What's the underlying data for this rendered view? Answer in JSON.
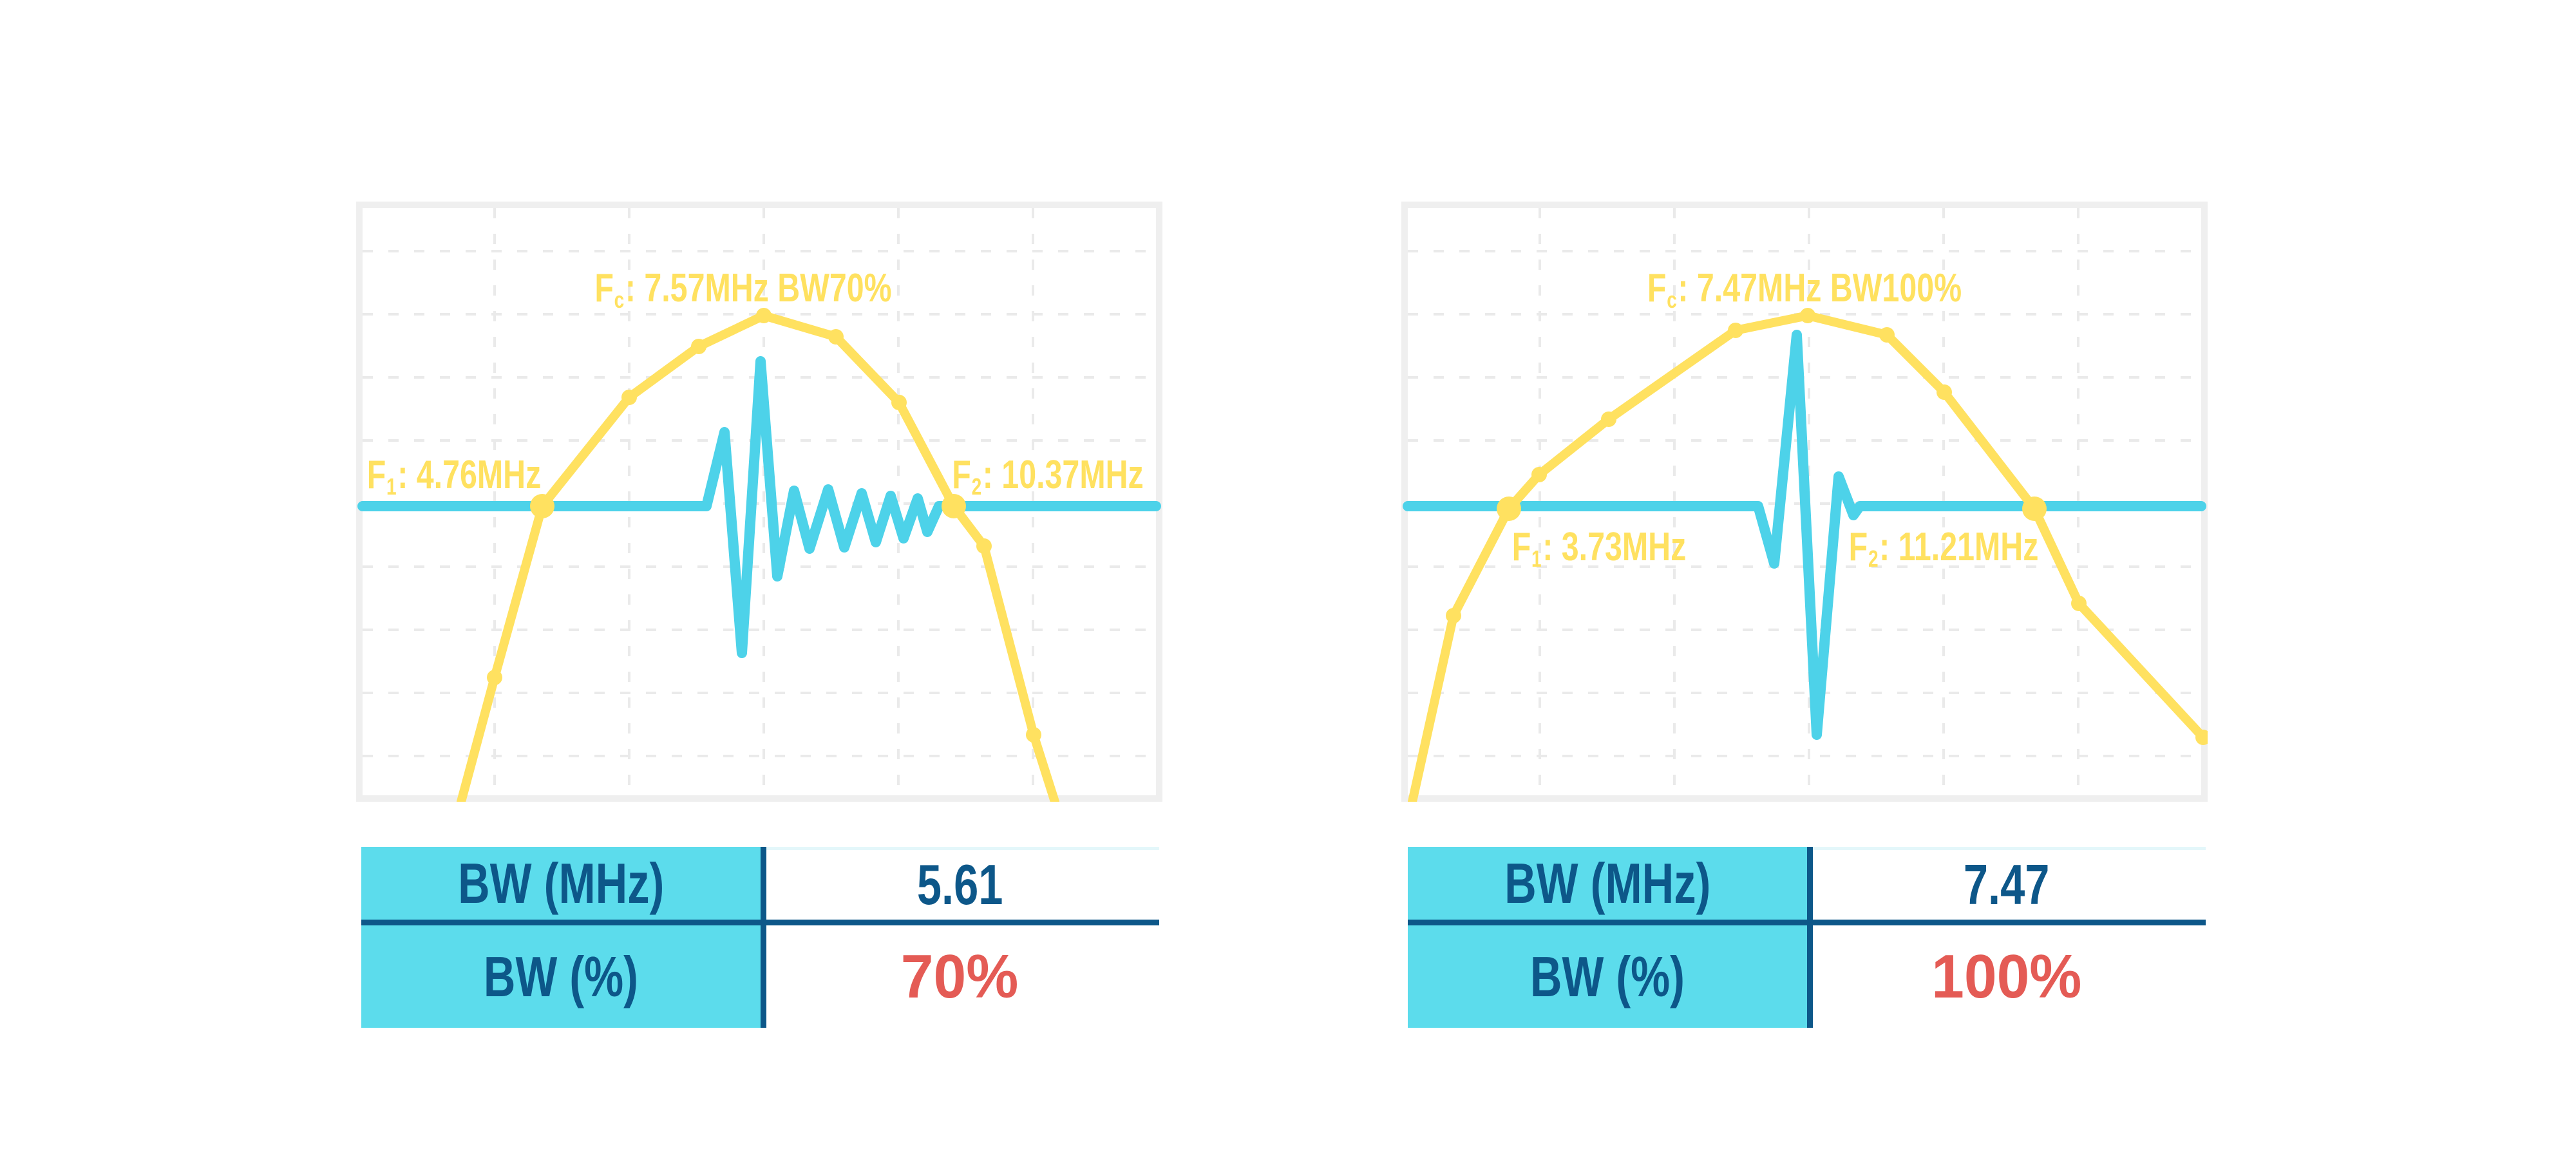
{
  "colors": {
    "yellow": "#FFE160",
    "cyan_wave": "#4DD2E9",
    "cyan_fill": "#5CDCEC",
    "dark_blue": "#0D5789",
    "red": "#E45B55",
    "grid": "#EAEAEA",
    "panel_border": "#EFEFEF",
    "value_cell_top_line": "#E4F7FA"
  },
  "chart_data": [
    {
      "type": "line",
      "title": "Fc: 7.57MHz BW70%",
      "fc_mhz": 7.57,
      "f1_mhz": 4.76,
      "f2_mhz": 10.37,
      "bw_mhz": 5.61,
      "bw_pct": 70,
      "legend": [
        "frequency spectrum (yellow, dot markers)",
        "pulse-echo waveform (cyan)"
      ],
      "grid": "dashed light-gray, no axis labels",
      "spectrum_mhz": [
        4.11,
        4.76,
        5.95,
        6.89,
        7.78,
        8.76,
        9.62,
        10.37,
        10.78,
        11.46
      ],
      "spectrum_amp": [
        0.26,
        0.61,
        0.83,
        0.94,
        1.0,
        0.96,
        0.82,
        0.61,
        0.53,
        0.14
      ],
      "pulse_description": "short broadband pulse with decaying ringing tail on baseline"
    },
    {
      "type": "line",
      "title": "Fc: 7.47MHz BW100%",
      "fc_mhz": 7.47,
      "f1_mhz": 3.73,
      "f2_mhz": 11.21,
      "bw_mhz": 7.47,
      "bw_pct": 100,
      "legend": [
        "frequency spectrum (yellow, dot markers)",
        "pulse-echo waveform (cyan)"
      ],
      "grid": "dashed light-gray, no axis labels",
      "spectrum_mhz": [
        2.94,
        3.73,
        4.16,
        5.15,
        6.96,
        7.98,
        9.09,
        9.93,
        11.21,
        11.84,
        13.58
      ],
      "spectrum_amp": [
        0.38,
        0.6,
        0.67,
        0.79,
        0.97,
        1.0,
        0.96,
        0.84,
        0.6,
        0.41,
        0.13
      ],
      "pulse_description": "very short single-spike pulse, no ringing"
    }
  ],
  "charts": [
    {
      "annotations": [
        {
          "prefix": "F",
          "sub": "c",
          "rest": ": 7.57MHz BW70%"
        },
        {
          "prefix": "F",
          "sub": "1",
          "rest": ": 4.76MHz"
        },
        {
          "prefix": "F",
          "sub": "2",
          "rest": ": 10.37MHz"
        }
      ],
      "grid": {
        "vx": [
          205,
          414,
          623,
          832,
          1041
        ],
        "hy": [
          67,
          165,
          263,
          361,
          459,
          557,
          655,
          753,
          851
        ]
      },
      "spectrum": [
        [
          153,
          922,
          0
        ],
        [
          205,
          729,
          1
        ],
        [
          279,
          463,
          2
        ],
        [
          414,
          294,
          1
        ],
        [
          522,
          215,
          1
        ],
        [
          623,
          167,
          1
        ],
        [
          735,
          200,
          1
        ],
        [
          833,
          302,
          1
        ],
        [
          918,
          463,
          2
        ],
        [
          965,
          525,
          1
        ],
        [
          1042,
          818,
          1
        ],
        [
          1075,
          922,
          0
        ]
      ],
      "pulse": [
        [
          0,
          463
        ],
        [
          534,
          463
        ],
        [
          562,
          348
        ],
        [
          589,
          691
        ],
        [
          618,
          238
        ],
        [
          644,
          572
        ],
        [
          670,
          439
        ],
        [
          694,
          529
        ],
        [
          723,
          437
        ],
        [
          748,
          527
        ],
        [
          775,
          443
        ],
        [
          797,
          519
        ],
        [
          820,
          447
        ],
        [
          840,
          513
        ],
        [
          862,
          451
        ],
        [
          877,
          503
        ],
        [
          895,
          463
        ],
        [
          1232,
          463
        ]
      ],
      "table": {
        "row1_label": "BW (MHz)",
        "row1_value": "5.61",
        "row2_label": "BW (%)",
        "row2_value": "70%"
      }
    },
    {
      "annotations": [
        {
          "prefix": "F",
          "sub": "c",
          "rest": ": 7.47MHz BW100%"
        },
        {
          "prefix": "F",
          "sub": "1",
          "rest": ": 3.73MHz"
        },
        {
          "prefix": "F",
          "sub": "2",
          "rest": ": 11.21MHz"
        }
      ],
      "grid": {
        "vx": [
          205,
          414,
          623,
          832,
          1041
        ],
        "hy": [
          67,
          165,
          263,
          361,
          459,
          557,
          655,
          753,
          851
        ]
      },
      "spectrum": [
        [
          7,
          922,
          0
        ],
        [
          71,
          633,
          1
        ],
        [
          157,
          467,
          2
        ],
        [
          204,
          414,
          1
        ],
        [
          312,
          328,
          1
        ],
        [
          509,
          190,
          1
        ],
        [
          621,
          167,
          1
        ],
        [
          744,
          197,
          1
        ],
        [
          833,
          286,
          1
        ],
        [
          973,
          467,
          2
        ],
        [
          1042,
          614,
          1
        ],
        [
          1235,
          822,
          1
        ]
      ],
      "pulse": [
        [
          0,
          463
        ],
        [
          544,
          463
        ],
        [
          569,
          552
        ],
        [
          604,
          197
        ],
        [
          635,
          818
        ],
        [
          669,
          417
        ],
        [
          692,
          477
        ],
        [
          702,
          463
        ],
        [
          1232,
          463
        ]
      ],
      "table": {
        "row1_label": "BW (MHz)",
        "row1_value": "7.47",
        "row2_label": "BW (%)",
        "row2_value": "100%"
      }
    }
  ]
}
